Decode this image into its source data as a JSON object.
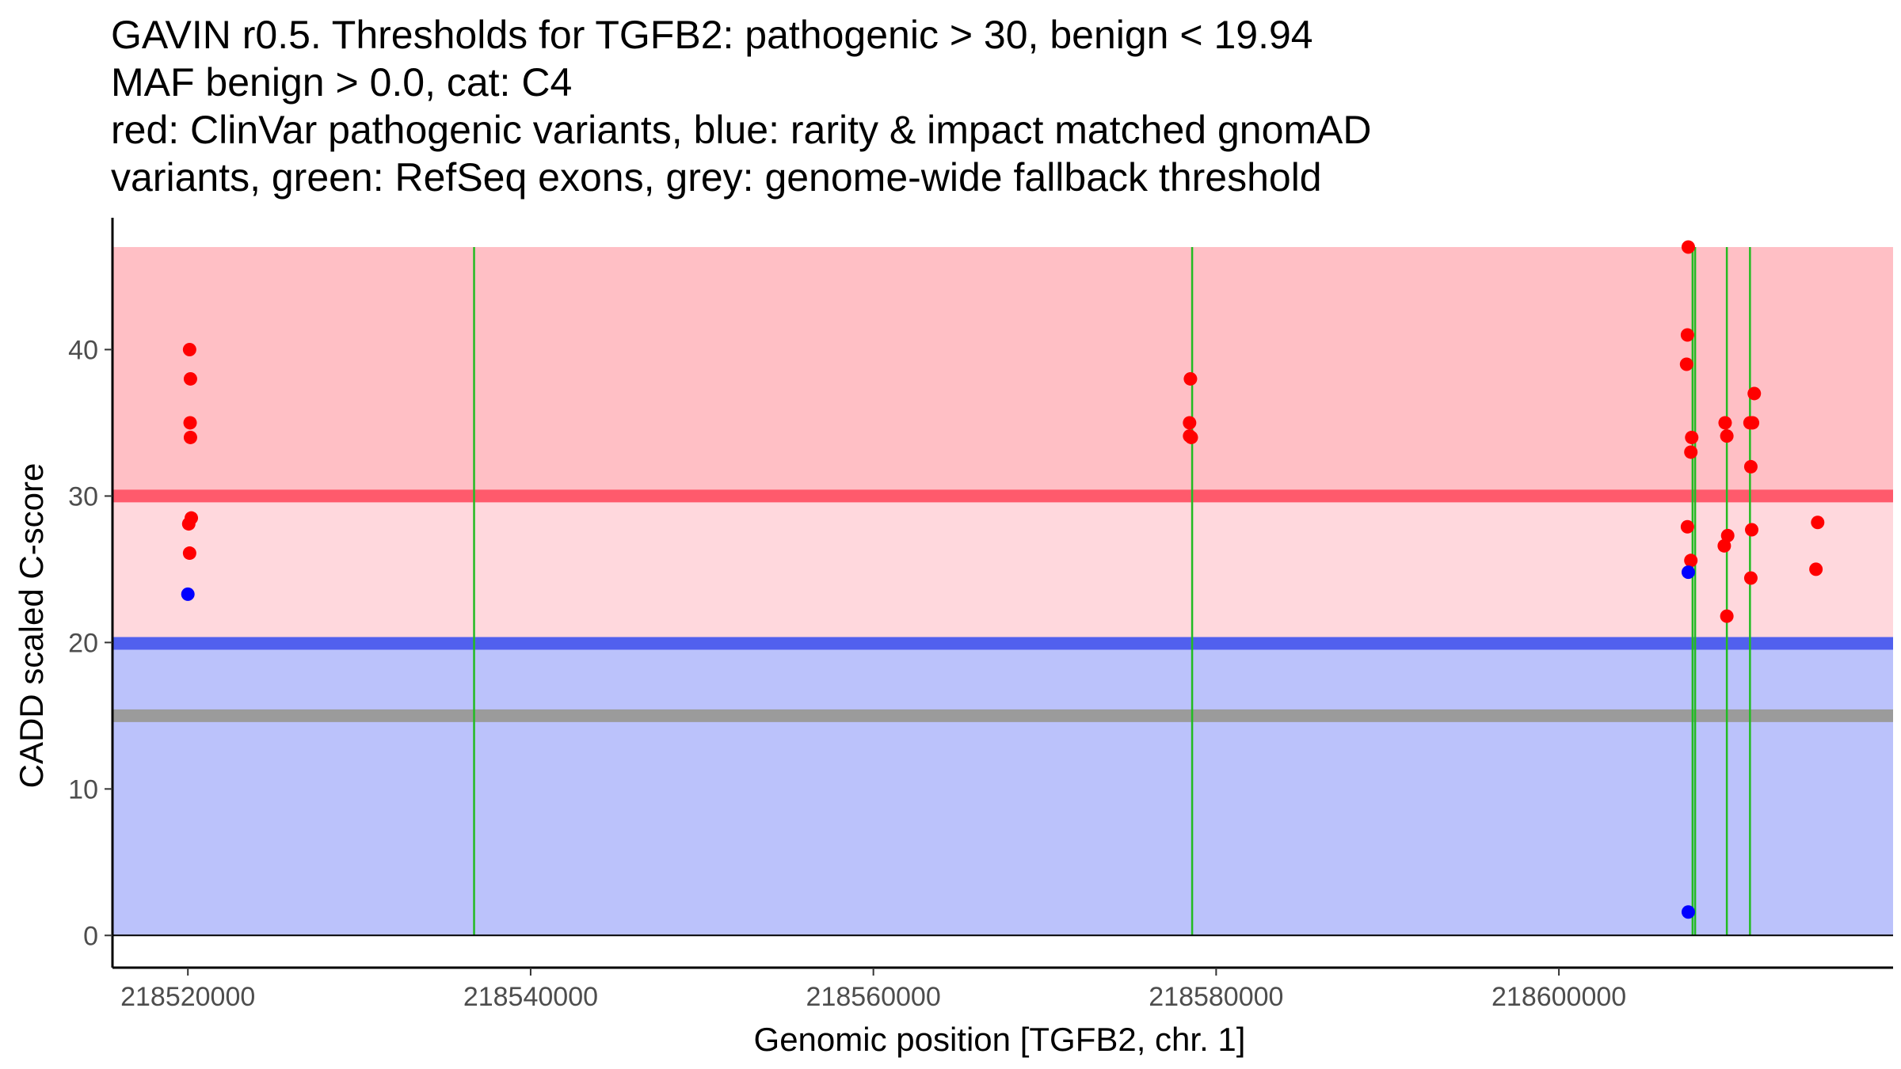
{
  "title_lines": [
    "GAVIN r0.5. Thresholds for TGFB2: pathogenic > 30, benign < 19.94",
    "MAF benign > 0.0, cat: C4",
    "red: ClinVar pathogenic variants, blue: rarity & impact matched gnomAD",
    "variants, green: RefSeq exons, grey: genome-wide fallback threshold"
  ],
  "colors": {
    "pathogenic_zone_high": "#ffbfc5",
    "pathogenic_zone_mid": "#ffd8dd",
    "benign_zone": "#bbc2fb",
    "pathogenic_threshold": "#ff5a6c",
    "benign_threshold": "#5160ee",
    "fallback_threshold": "#9b9b9b",
    "exon": "#22bb22",
    "clinvar_point": "#ff0000",
    "gnomad_point": "#0000ff"
  },
  "chart_data": {
    "type": "scatter",
    "title": "GAVIN r0.5. Thresholds for TGFB2: pathogenic > 30, benign < 19.94",
    "xlabel": "Genomic position [TGFB2, chr. 1]",
    "ylabel": "CADD scaled C-score",
    "xlim": [
      218515600,
      218619500
    ],
    "ylim": [
      -2.2,
      49.0
    ],
    "x_ticks": [
      218520000,
      218540000,
      218560000,
      218580000,
      218600000
    ],
    "x_tick_labels": [
      "218520000",
      "218540000",
      "218560000",
      "218580000",
      "218600000"
    ],
    "y_ticks": [
      0,
      10,
      20,
      30,
      40
    ],
    "y_tick_labels": [
      "0",
      "10",
      "20",
      "30",
      "40"
    ],
    "bands": [
      {
        "name": "benign-zone",
        "from": 0,
        "to": 19.94
      },
      {
        "name": "pathogenic-zone-mid",
        "from": 19.94,
        "to": 30
      },
      {
        "name": "pathogenic-zone-high",
        "from": 30,
        "to": 47
      }
    ],
    "thresholds": {
      "pathogenic": 30,
      "benign": 19.94,
      "fallback": 15
    },
    "exons": [
      218536700,
      218578600,
      218607800,
      218607950,
      218609800,
      218611150
    ],
    "exon_top": 47,
    "series": [
      {
        "name": "ClinVar pathogenic variants",
        "points": [
          [
            218520100,
            40.0
          ],
          [
            218520150,
            38.0
          ],
          [
            218520130,
            35.0
          ],
          [
            218520150,
            34.0
          ],
          [
            218520200,
            28.5
          ],
          [
            218520050,
            28.1
          ],
          [
            218520100,
            26.1
          ],
          [
            218578500,
            38.0
          ],
          [
            218578450,
            35.0
          ],
          [
            218578450,
            34.1
          ],
          [
            218578550,
            34.0
          ],
          [
            218607550,
            47.0
          ],
          [
            218607500,
            41.0
          ],
          [
            218607450,
            39.0
          ],
          [
            218607750,
            34.0
          ],
          [
            218607700,
            33.0
          ],
          [
            218607500,
            27.9
          ],
          [
            218607700,
            25.6
          ],
          [
            218609700,
            35.0
          ],
          [
            218609800,
            34.1
          ],
          [
            218609850,
            27.3
          ],
          [
            218609650,
            26.6
          ],
          [
            218609800,
            21.8
          ],
          [
            218611400,
            37.0
          ],
          [
            218611150,
            35.0
          ],
          [
            218611300,
            35.0
          ],
          [
            218611200,
            32.0
          ],
          [
            218611250,
            27.7
          ],
          [
            218611200,
            24.4
          ],
          [
            218615100,
            28.2
          ],
          [
            218615000,
            25.0
          ]
        ]
      },
      {
        "name": "rarity & impact matched gnomAD variants",
        "points": [
          [
            218520000,
            23.3
          ],
          [
            218607550,
            24.8
          ],
          [
            218607550,
            1.6
          ]
        ]
      }
    ]
  }
}
